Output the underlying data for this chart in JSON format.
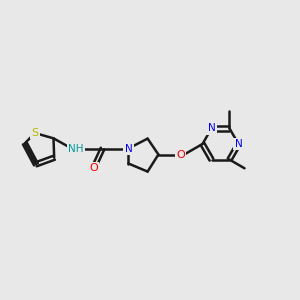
{
  "bg_color": "#e8e8e8",
  "bond_color": "#1a1a1a",
  "bond_width": 1.8,
  "atom_colors": {
    "S": "#b8b800",
    "N": "#0000ee",
    "NH": "#009999",
    "O": "#ee0000",
    "C": "#1a1a1a"
  },
  "font_size": 7.5,
  "fig_size": [
    3.0,
    3.0
  ],
  "dpi": 100
}
